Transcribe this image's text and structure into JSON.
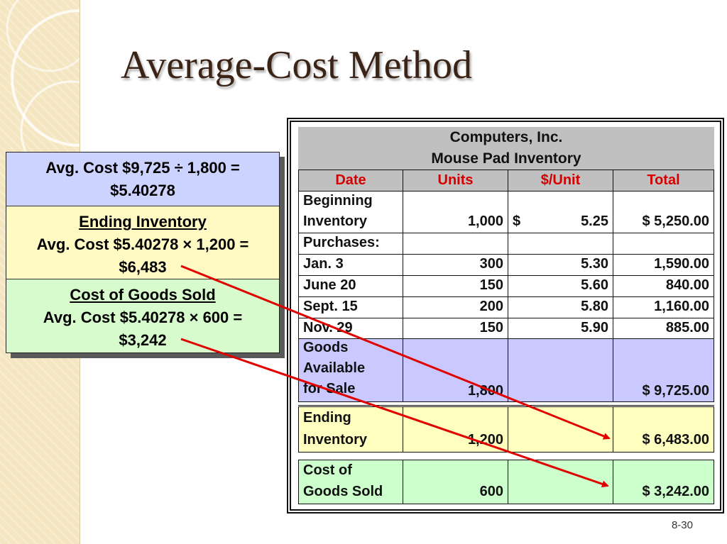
{
  "slide": {
    "title": "Average-Cost Method",
    "page_number": "8-30"
  },
  "callout": {
    "avg_line1": "Avg. Cost  $9,725 ÷ 1,800 =",
    "avg_line2": "$5.40278",
    "ending_heading": "Ending Inventory",
    "ending_line1": "Avg. Cost  $5.40278 × 1,200 =",
    "ending_line2": "$6,483",
    "cogs_heading": "Cost of Goods Sold",
    "cogs_line1": "Avg. Cost  $5.40278 × 600 =",
    "cogs_line2": "$3,242",
    "colors": {
      "avg": "#cdd3ff",
      "ending": "#fff9c4",
      "cogs": "#d7fbcc"
    }
  },
  "table": {
    "company": "Computers, Inc.",
    "subtitle": "Mouse Pad Inventory",
    "columns": [
      "Date",
      "Units",
      "$/Unit",
      "Total"
    ],
    "rows": {
      "beginning": {
        "date1": "Beginning",
        "date2": "Inventory",
        "units": "1,000",
        "dollar": "$",
        "unit_cost": "5.25",
        "total": "$  5,250.00"
      },
      "purchases_label": "Purchases:",
      "jan3": {
        "date": "Jan. 3",
        "units": "300",
        "unit_cost": "5.30",
        "total": "1,590.00"
      },
      "june20": {
        "date": "June 20",
        "units": "150",
        "unit_cost": "5.60",
        "total": "840.00"
      },
      "sept15": {
        "date": "Sept. 15",
        "units": "200",
        "unit_cost": "5.80",
        "total": "1,160.00"
      },
      "nov29": {
        "date": "Nov. 29",
        "units": "150",
        "unit_cost": "5.90",
        "total": "885.00"
      },
      "goods_available": {
        "date1": "Goods",
        "date2": "Available",
        "date3": "for Sale",
        "units": "1,800",
        "total": "$  9,725.00"
      },
      "ending": {
        "date1": "Ending",
        "date2": "Inventory",
        "units": "1,200",
        "total": "$  6,483.00"
      },
      "cogs": {
        "date1": "Cost of",
        "date2": "Goods Sold",
        "units": "600",
        "total": "$  3,242.00"
      }
    },
    "colors": {
      "header": "#c0c0c0",
      "goods_available": "#c9c9ff",
      "ending": "#ffffc0",
      "cogs": "#ccffcc",
      "column_header_text": "#d40000"
    }
  },
  "arrows": {
    "color": "#e00000"
  }
}
